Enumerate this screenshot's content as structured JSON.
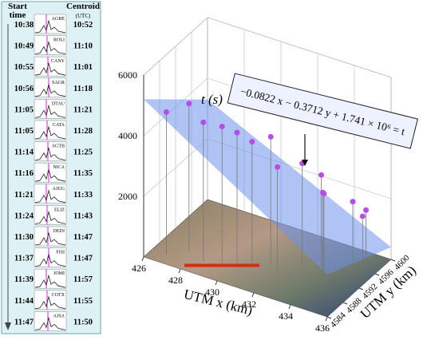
{
  "table": {
    "headers": [
      {
        "line1": "Start",
        "line2": "time"
      },
      {
        "line1": "Centroid",
        "line2": "(UTC)"
      }
    ],
    "rows": [
      {
        "start": "10:38",
        "station": "AGBE",
        "centroid": "10:52"
      },
      {
        "start": "10:49",
        "station": "ROLI",
        "centroid": "11:10"
      },
      {
        "start": "10:55",
        "station": "CANY",
        "centroid": "11:01"
      },
      {
        "start": "10:56",
        "station": "SAGR",
        "centroid": "11:18"
      },
      {
        "start": "11:05",
        "station": "DTAU",
        "centroid": "11:21"
      },
      {
        "start": "11:05",
        "station": "CATA",
        "centroid": "11:28"
      },
      {
        "start": "11:14",
        "station": "AGTB",
        "centroid": "11:25"
      },
      {
        "start": "11:16",
        "station": "NICA",
        "centroid": "11:35"
      },
      {
        "start": "11:21",
        "station": "AJUG",
        "centroid": "11:33"
      },
      {
        "start": "11:24",
        "station": "ELIZ",
        "centroid": "11:43"
      },
      {
        "start": "11:30",
        "station": "DEIN",
        "centroid": "11:47"
      },
      {
        "start": "11:37",
        "station": "FISI",
        "centroid": "11:47"
      },
      {
        "start": "11:39",
        "station": "JOMI",
        "centroid": "11:57"
      },
      {
        "start": "11:44",
        "station": "COTX",
        "centroid": "11:55"
      },
      {
        "start": "11:47",
        "station": "AJSA",
        "centroid": "11:50"
      }
    ]
  },
  "chart_data": {
    "type": "scatter3d",
    "equation": "−0.0822 x − 0.3712 y + 1.741 × 10⁶ = t",
    "xlabel": "UTM x (km)",
    "ylabel": "UTM y (km)",
    "zlabel": "t (s)",
    "xlim": [
      426,
      436
    ],
    "xticks": [
      426,
      428,
      430,
      432,
      434,
      436
    ],
    "ylim": [
      4584,
      4600
    ],
    "yticks": [
      4584,
      4588,
      4592,
      4596,
      4600
    ],
    "zlim": [
      0,
      6000
    ],
    "zticks": [
      2000,
      4000,
      6000
    ],
    "color": "#b84ce6",
    "x": [
      426.8,
      427.6,
      428.6,
      429.4,
      430.0,
      430.6,
      431.4,
      432.2,
      432.9,
      433.5,
      433.8,
      434.3,
      435.0,
      435.5,
      435.1
    ],
    "y": [
      4586,
      4588,
      4587,
      4588,
      4589,
      4590,
      4591,
      4589,
      4592,
      4594,
      4593,
      4591,
      4595,
      4596,
      4597
    ],
    "z": [
      4700,
      4900,
      4600,
      4500,
      4300,
      4000,
      4200,
      3600,
      3500,
      3000,
      2600,
      2900,
      2300,
      2000,
      1600
    ]
  }
}
